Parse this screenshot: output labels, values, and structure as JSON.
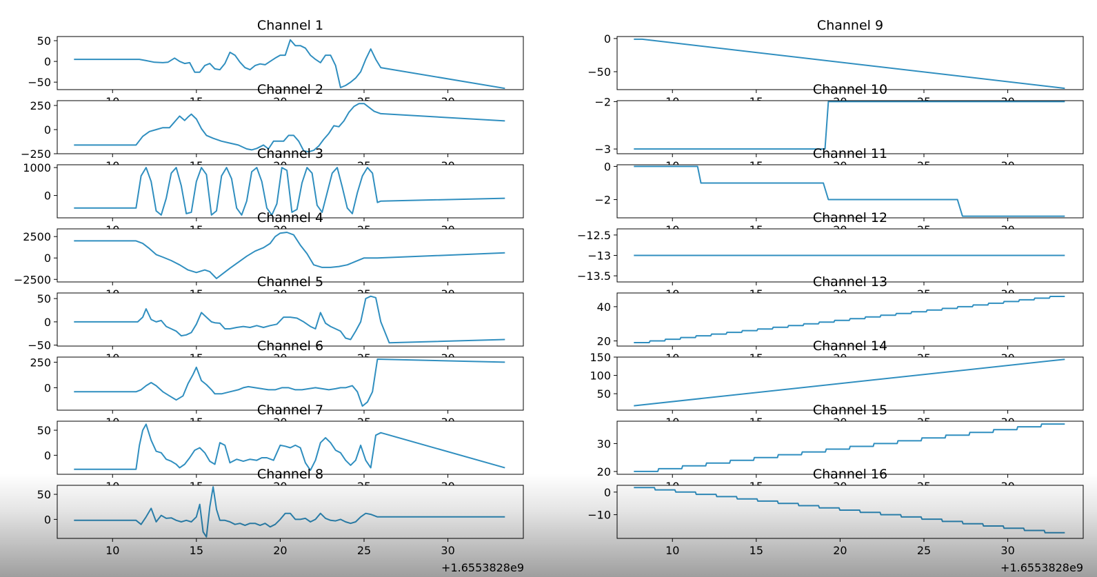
{
  "figure": {
    "offset_label": "+1.6553828e9",
    "x_ticks": [
      10,
      15,
      20,
      25,
      30
    ],
    "xlim": [
      6.7,
      34.5
    ]
  },
  "colors": {
    "line": "#2f8ebf",
    "axis": "#000000",
    "background": "#ffffff"
  },
  "chart_data": [
    {
      "type": "line",
      "title": "Channel 1",
      "ylim": [
        -68,
        60
      ],
      "yticks": [
        50,
        0,
        -50
      ],
      "x": [
        7.7,
        11.6,
        12.0,
        12.5,
        13.0,
        13.3,
        13.7,
        14.0,
        14.3,
        14.6,
        14.9,
        15.2,
        15.5,
        15.8,
        16.1,
        16.4,
        16.7,
        17.0,
        17.3,
        17.6,
        17.9,
        18.2,
        18.5,
        18.8,
        19.1,
        19.4,
        19.7,
        20.0,
        20.3,
        20.6,
        20.9,
        21.2,
        21.5,
        21.8,
        22.1,
        22.4,
        22.7,
        23.0,
        23.3,
        23.6,
        23.9,
        24.2,
        24.5,
        24.8,
        25.1,
        25.4,
        25.7,
        26.0,
        33.4
      ],
      "y": [
        5,
        5,
        2,
        -2,
        -3,
        -2,
        8,
        0,
        -5,
        -3,
        -26,
        -26,
        -10,
        -5,
        -18,
        -20,
        -5,
        22,
        15,
        -2,
        -15,
        -20,
        -10,
        -6,
        -8,
        0,
        8,
        15,
        15,
        52,
        38,
        38,
        32,
        15,
        5,
        -3,
        15,
        15,
        -10,
        -63,
        -58,
        -50,
        -40,
        -25,
        5,
        30,
        5,
        -15,
        -65
      ]
    },
    {
      "type": "line",
      "title": "Channel 2",
      "ylim": [
        -250,
        300
      ],
      "yticks": [
        250,
        0,
        -250
      ],
      "x": [
        7.7,
        11.4,
        11.8,
        12.2,
        12.6,
        13.0,
        13.4,
        13.7,
        14.0,
        14.3,
        14.5,
        14.7,
        15.0,
        15.3,
        15.6,
        16.0,
        16.5,
        17.0,
        17.5,
        18.0,
        18.3,
        18.6,
        19.0,
        19.3,
        19.6,
        19.9,
        20.2,
        20.5,
        20.8,
        21.1,
        21.4,
        21.7,
        22.0,
        22.3,
        22.6,
        22.9,
        23.2,
        23.5,
        23.8,
        24.1,
        24.4,
        24.7,
        25.0,
        25.3,
        25.6,
        26.0,
        33.4
      ],
      "y": [
        -160,
        -160,
        -70,
        -20,
        0,
        20,
        20,
        80,
        140,
        95,
        130,
        160,
        110,
        10,
        -60,
        -90,
        -120,
        -140,
        -160,
        -200,
        -210,
        -195,
        -160,
        -200,
        -120,
        -120,
        -120,
        -60,
        -60,
        -120,
        -220,
        -230,
        -215,
        -170,
        -100,
        -40,
        40,
        30,
        90,
        180,
        240,
        270,
        270,
        230,
        190,
        165,
        90
      ]
    },
    {
      "type": "line",
      "title": "Channel 3",
      "ylim": [
        -800,
        1100
      ],
      "yticks": [
        1000,
        0
      ],
      "x": [
        7.7,
        11.4,
        11.7,
        12.0,
        12.3,
        12.6,
        12.9,
        13.2,
        13.5,
        13.8,
        14.1,
        14.4,
        14.7,
        15.0,
        15.3,
        15.6,
        15.9,
        16.2,
        16.5,
        16.8,
        17.1,
        17.4,
        17.7,
        18.0,
        18.3,
        18.6,
        18.9,
        19.2,
        19.5,
        19.8,
        20.1,
        20.4,
        20.7,
        21.0,
        21.3,
        21.6,
        21.9,
        22.2,
        22.5,
        22.8,
        23.1,
        23.4,
        23.7,
        24.0,
        24.3,
        24.6,
        24.9,
        25.2,
        25.5,
        25.8,
        26.0,
        33.4
      ],
      "y": [
        -450,
        -450,
        700,
        1000,
        500,
        -550,
        -700,
        -100,
        800,
        1000,
        350,
        -650,
        -600,
        500,
        1000,
        750,
        -700,
        -550,
        700,
        1000,
        600,
        -450,
        -700,
        -200,
        850,
        1000,
        500,
        -450,
        -700,
        -300,
        1000,
        900,
        -600,
        -500,
        450,
        1000,
        800,
        -350,
        -600,
        100,
        800,
        1000,
        300,
        -450,
        -650,
        100,
        700,
        1000,
        800,
        -250,
        -200,
        -100
      ]
    },
    {
      "type": "line",
      "title": "Channel 4",
      "ylim": [
        -2800,
        3400
      ],
      "yticks": [
        2500,
        0,
        -2500
      ],
      "x": [
        7.7,
        11.4,
        11.8,
        12.2,
        12.6,
        13.0,
        13.5,
        14.0,
        14.5,
        15.0,
        15.5,
        15.8,
        16.2,
        16.6,
        17.0,
        17.5,
        18.0,
        18.5,
        19.0,
        19.4,
        19.7,
        20.0,
        20.4,
        20.8,
        21.2,
        21.6,
        22.0,
        22.5,
        23.0,
        23.5,
        24.0,
        24.5,
        25.0,
        25.8,
        33.4
      ],
      "y": [
        2000,
        2000,
        1700,
        1100,
        400,
        100,
        -300,
        -800,
        -1400,
        -1700,
        -1400,
        -1600,
        -2400,
        -1800,
        -1200,
        -500,
        200,
        800,
        1200,
        1700,
        2500,
        2900,
        3000,
        2700,
        1500,
        500,
        -800,
        -1100,
        -1100,
        -1000,
        -800,
        -400,
        0,
        0,
        600
      ]
    },
    {
      "type": "line",
      "title": "Channel 5",
      "ylim": [
        -52,
        62
      ],
      "yticks": [
        50,
        0,
        -50
      ],
      "x": [
        7.7,
        11.5,
        11.8,
        12.0,
        12.3,
        12.6,
        12.9,
        13.2,
        13.5,
        13.8,
        14.1,
        14.4,
        14.7,
        15.0,
        15.3,
        15.6,
        15.9,
        16.1,
        16.4,
        16.7,
        17.0,
        17.4,
        17.8,
        18.2,
        18.6,
        19.0,
        19.4,
        19.8,
        20.2,
        20.6,
        21.0,
        21.4,
        21.8,
        22.1,
        22.4,
        22.7,
        23.0,
        23.3,
        23.6,
        23.9,
        24.2,
        24.5,
        24.8,
        25.1,
        25.4,
        25.7,
        26.0,
        26.5,
        33.4
      ],
      "y": [
        0,
        0,
        10,
        28,
        5,
        0,
        3,
        -10,
        -15,
        -20,
        -30,
        -28,
        -23,
        -5,
        20,
        10,
        0,
        -2,
        -3,
        -15,
        -15,
        -12,
        -10,
        -12,
        -8,
        -12,
        -8,
        -5,
        10,
        10,
        8,
        0,
        -10,
        -15,
        20,
        -3,
        -10,
        -15,
        -20,
        -35,
        -38,
        -20,
        0,
        50,
        55,
        52,
        0,
        -45,
        -38
      ]
    },
    {
      "type": "line",
      "title": "Channel 6",
      "ylim": [
        -220,
        300
      ],
      "yticks": [
        250,
        0
      ],
      "x": [
        7.7,
        11.4,
        11.7,
        12.0,
        12.3,
        12.6,
        13.0,
        13.4,
        13.8,
        14.2,
        14.5,
        14.8,
        15.0,
        15.3,
        15.6,
        15.9,
        16.1,
        16.5,
        17.0,
        17.5,
        17.8,
        18.1,
        18.5,
        18.9,
        19.3,
        19.7,
        20.1,
        20.5,
        20.9,
        21.3,
        21.7,
        22.1,
        22.5,
        22.9,
        23.3,
        23.6,
        23.9,
        24.3,
        24.6,
        24.9,
        25.2,
        25.5,
        25.8,
        33.4
      ],
      "y": [
        -40,
        -40,
        -20,
        20,
        50,
        20,
        -40,
        -80,
        -120,
        -80,
        40,
        130,
        200,
        70,
        30,
        -20,
        -60,
        -60,
        -40,
        -20,
        0,
        10,
        0,
        -10,
        -20,
        -20,
        0,
        0,
        -20,
        -20,
        -10,
        0,
        -10,
        -20,
        -10,
        0,
        0,
        20,
        -40,
        -180,
        -140,
        -40,
        280,
        250
      ]
    },
    {
      "type": "line",
      "title": "Channel 7",
      "ylim": [
        -38,
        68
      ],
      "yticks": [
        50,
        0
      ],
      "x": [
        7.7,
        11.4,
        11.6,
        11.8,
        12.0,
        12.3,
        12.6,
        12.9,
        13.2,
        13.5,
        13.8,
        14.0,
        14.3,
        14.6,
        14.9,
        15.2,
        15.5,
        15.8,
        16.1,
        16.4,
        16.7,
        17.0,
        17.4,
        17.8,
        18.2,
        18.6,
        18.9,
        19.2,
        19.6,
        20.0,
        20.3,
        20.6,
        20.9,
        21.2,
        21.5,
        21.8,
        22.1,
        22.4,
        22.7,
        23.0,
        23.3,
        23.6,
        23.9,
        24.2,
        24.5,
        24.8,
        25.1,
        25.4,
        25.7,
        26.0,
        33.4
      ],
      "y": [
        -28,
        -28,
        20,
        50,
        62,
        30,
        8,
        5,
        -8,
        -12,
        -18,
        -25,
        -18,
        -5,
        10,
        15,
        5,
        -12,
        -18,
        25,
        20,
        -15,
        -8,
        -12,
        -8,
        -10,
        -5,
        -5,
        -10,
        20,
        18,
        15,
        20,
        15,
        -15,
        -30,
        -10,
        25,
        35,
        25,
        10,
        5,
        -10,
        -20,
        -10,
        20,
        -10,
        -25,
        40,
        45,
        -25
      ]
    },
    {
      "type": "line",
      "title": "Channel 8",
      "ylim": [
        -38,
        68
      ],
      "yticks": [
        50,
        0
      ],
      "x": [
        7.7,
        11.4,
        11.7,
        12.0,
        12.3,
        12.6,
        12.9,
        13.2,
        13.5,
        13.8,
        14.1,
        14.4,
        14.7,
        15.0,
        15.2,
        15.4,
        15.6,
        15.8,
        16.0,
        16.2,
        16.4,
        16.7,
        17.0,
        17.3,
        17.6,
        17.9,
        18.2,
        18.5,
        18.8,
        19.1,
        19.4,
        19.7,
        20.0,
        20.3,
        20.6,
        20.9,
        21.2,
        21.5,
        21.8,
        22.1,
        22.4,
        22.7,
        23.0,
        23.3,
        23.6,
        23.9,
        24.2,
        24.5,
        24.8,
        25.1,
        25.4,
        25.8,
        33.4
      ],
      "y": [
        -2,
        -2,
        -10,
        5,
        22,
        -5,
        8,
        2,
        3,
        -2,
        -5,
        -2,
        -5,
        5,
        30,
        -25,
        -35,
        25,
        65,
        20,
        -2,
        -2,
        -5,
        -10,
        -8,
        -12,
        -8,
        -8,
        -12,
        -8,
        -15,
        -10,
        0,
        12,
        12,
        0,
        0,
        2,
        -5,
        0,
        12,
        2,
        -2,
        -3,
        0,
        -5,
        -8,
        -5,
        5,
        12,
        10,
        5,
        5
      ]
    },
    {
      "type": "line",
      "title": "Channel 9",
      "ylim": [
        -77,
        3
      ],
      "yticks": [
        0,
        -50
      ],
      "x": [
        7.7,
        8.2,
        33.4
      ],
      "y": [
        -1,
        -1,
        -75
      ]
    },
    {
      "type": "line",
      "title": "Channel 10",
      "ylim": [
        -3.1,
        -1.98
      ],
      "yticks": [
        -2,
        -3
      ],
      "x": [
        7.7,
        19.0,
        19.1,
        19.3,
        33.4
      ],
      "y": [
        -3,
        -3,
        -3,
        -2,
        -2
      ]
    },
    {
      "type": "line",
      "title": "Channel 11",
      "ylim": [
        -3.1,
        0.1
      ],
      "yticks": [
        0,
        -2
      ],
      "x": [
        7.7,
        11.5,
        11.7,
        19.0,
        19.3,
        27.0,
        27.3,
        33.4
      ],
      "y": [
        0,
        0,
        -1,
        -1,
        -2,
        -2,
        -3,
        -3
      ]
    },
    {
      "type": "line",
      "title": "Channel 12",
      "ylim": [
        -13.65,
        -12.35
      ],
      "yticks": [
        -12.5,
        -13.0,
        -13.5
      ],
      "x": [
        7.7,
        33.4
      ],
      "y": [
        -13.0,
        -13.0
      ]
    },
    {
      "type": "line",
      "title": "Channel 13",
      "ylim": [
        17,
        48
      ],
      "yticks": [
        40,
        20
      ],
      "x": [
        7.7,
        33.4
      ],
      "y": [
        19,
        46
      ]
    },
    {
      "type": "line",
      "title": "Channel 14",
      "ylim": [
        5,
        150
      ],
      "yticks": [
        150,
        100,
        50
      ],
      "x": [
        7.7,
        33.4
      ],
      "y": [
        17,
        144
      ]
    },
    {
      "type": "line",
      "title": "Channel 15",
      "ylim": [
        19,
        38
      ],
      "yticks": [
        30,
        20
      ],
      "x": [
        7.7,
        33.4
      ],
      "y": [
        20,
        37
      ]
    },
    {
      "type": "line",
      "title": "Channel 16",
      "ylim": [
        -20.5,
        3
      ],
      "yticks": [
        0,
        -10
      ],
      "x": [
        7.7,
        33.4
      ],
      "y": [
        2,
        -18
      ]
    }
  ]
}
